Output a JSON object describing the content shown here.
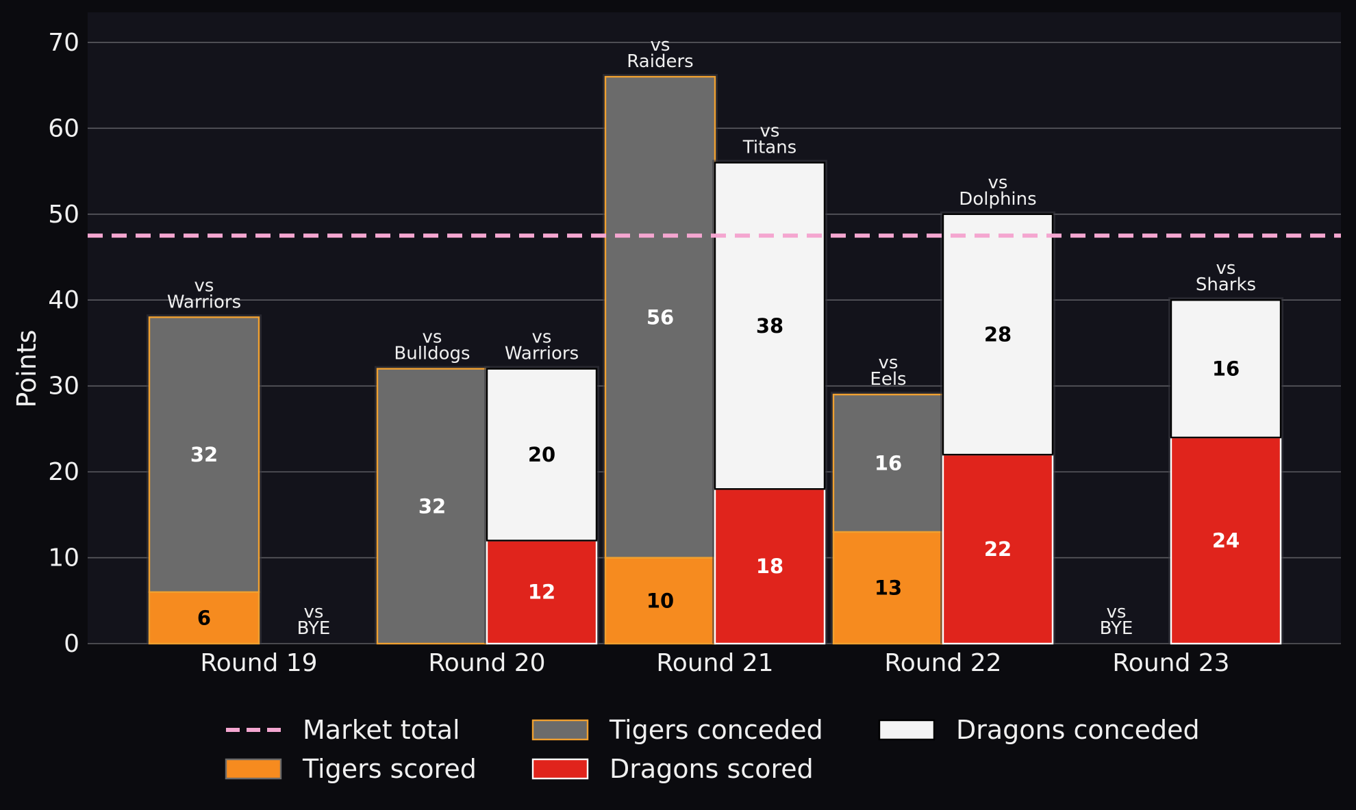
{
  "chart_data": {
    "type": "bar",
    "title": "",
    "xlabel": "",
    "ylabel": "Points",
    "ylim": [
      0,
      73.5
    ],
    "yticks": [
      0,
      10,
      20,
      30,
      40,
      50,
      60,
      70
    ],
    "grid": true,
    "categories": [
      "Round 19",
      "Round 20",
      "Round 21",
      "Round 22",
      "Round 23"
    ],
    "reference_line": {
      "name": "Market total",
      "value": 47.5,
      "color": "#f4a6d0"
    },
    "teams": [
      {
        "name": "Tigers",
        "scored": [
          6,
          0,
          10,
          13,
          0
        ],
        "conceded": [
          32,
          32,
          56,
          16,
          0
        ],
        "opponents": [
          "vs\nWarriors",
          "vs\nBulldogs",
          "vs\nRaiders",
          "vs\nEels",
          "vs\nBYE"
        ],
        "scored_color": "#f68b1f",
        "conceded_color": "#6b6b6b",
        "edge_color": "#f0a030",
        "scored_label_color": "#000000",
        "conceded_label_color": "#ffffff"
      },
      {
        "name": "Dragons",
        "scored": [
          0,
          12,
          18,
          22,
          24
        ],
        "conceded": [
          0,
          20,
          38,
          28,
          16
        ],
        "opponents": [
          "vs\nBYE",
          "vs\nWarriors",
          "vs\nTitans",
          "vs\nDolphins",
          "vs\nSharks"
        ],
        "scored_color": "#e0241c",
        "conceded_color": "#f4f4f4",
        "edge_color": "#ffffff",
        "scored_label_color": "#ffffff",
        "conceded_label_color": "#000000"
      }
    ],
    "legend": {
      "placement": "bottom",
      "entries": [
        {
          "label": "Market total",
          "kind": "dashed-line",
          "color": "#f4a6d0"
        },
        {
          "label": "Tigers scored",
          "kind": "box",
          "color": "#f68b1f"
        },
        {
          "label": "Tigers conceded",
          "kind": "box",
          "color": "#6b6b6b"
        },
        {
          "label": "Dragons scored",
          "kind": "box",
          "color": "#e0241c"
        },
        {
          "label": "Dragons conceded",
          "kind": "box",
          "color": "#f4f4f4"
        }
      ]
    },
    "colors": {
      "page_background": "#0b0b0f",
      "plot_background": "#13131b",
      "grid": "#5c5c62",
      "text": "#f0f0f0",
      "halo": "#3a3a42"
    }
  }
}
